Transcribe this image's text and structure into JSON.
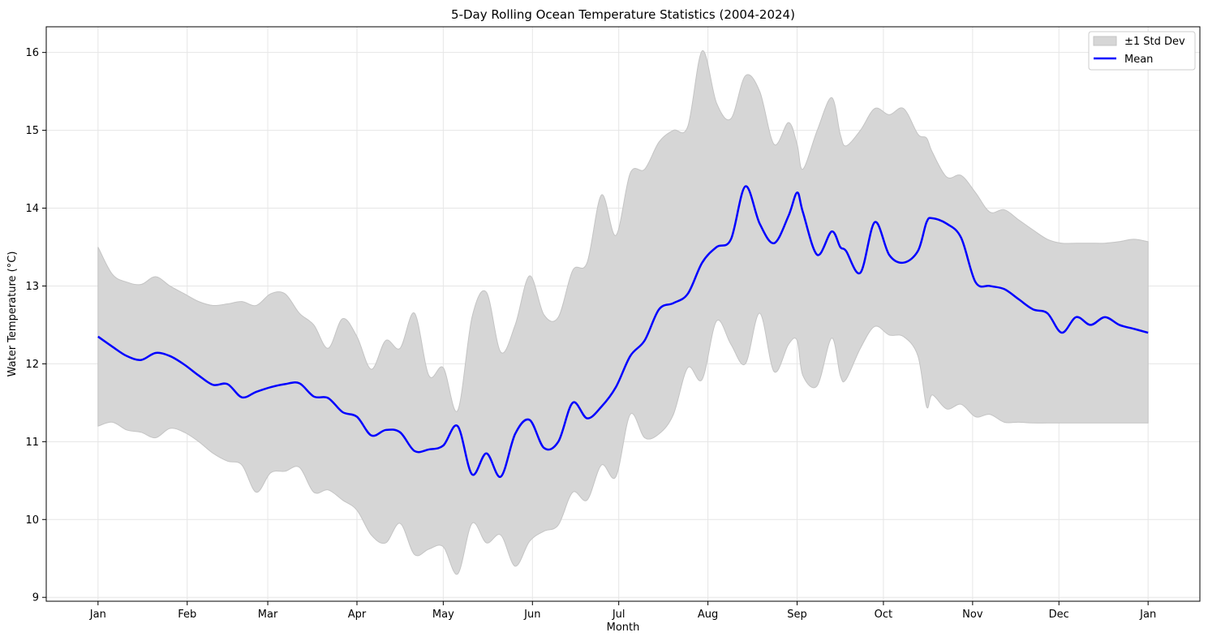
{
  "chart_data": {
    "type": "line",
    "title": "5-Day Rolling Ocean Temperature Statistics (2004-2024)",
    "xlabel": "Month",
    "ylabel": "Water Temperature (°C)",
    "x_ticks": [
      "Jan",
      "Feb",
      "Mar",
      "Apr",
      "May",
      "Jun",
      "Jul",
      "Aug",
      "Sep",
      "Oct",
      "Nov",
      "Dec",
      "Jan"
    ],
    "x_tick_days": [
      1,
      32,
      60,
      91,
      121,
      152,
      182,
      213,
      244,
      274,
      305,
      335,
      366
    ],
    "xlim": [
      -17,
      384
    ],
    "ylim": [
      8.95,
      16.33
    ],
    "y_ticks": [
      9,
      10,
      11,
      12,
      13,
      14,
      15,
      16
    ],
    "grid": true,
    "legend_position": "top-right",
    "colors": {
      "mean": "#0000ff",
      "band": "#d6d6d6",
      "band_edge": "#c4c4c4"
    },
    "series": [
      {
        "name": "Mean",
        "x": [
          1,
          6,
          11,
          16,
          21,
          26,
          31,
          36,
          41,
          46,
          51,
          56,
          61,
          66,
          71,
          76,
          81,
          86,
          91,
          96,
          101,
          106,
          111,
          116,
          121,
          126,
          131,
          136,
          141,
          146,
          151,
          156,
          161,
          166,
          171,
          176,
          181,
          186,
          191,
          196,
          201,
          206,
          211,
          216,
          221,
          226,
          231,
          236,
          241,
          244,
          246,
          251,
          256,
          259,
          261,
          266,
          271,
          276,
          281,
          286,
          289,
          291,
          296,
          301,
          306,
          311,
          316,
          321,
          326,
          331,
          336,
          341,
          346,
          351,
          356,
          361,
          366
        ],
        "values": [
          12.35,
          12.22,
          12.1,
          12.05,
          12.14,
          12.1,
          11.99,
          11.85,
          11.73,
          11.74,
          11.57,
          11.64,
          11.7,
          11.74,
          11.75,
          11.58,
          11.56,
          11.38,
          11.32,
          11.08,
          11.15,
          11.12,
          10.88,
          10.9,
          10.95,
          11.2,
          10.58,
          10.85,
          10.55,
          11.1,
          11.28,
          10.92,
          11.0,
          11.5,
          11.3,
          11.45,
          11.7,
          12.1,
          12.3,
          12.7,
          12.78,
          12.9,
          13.3,
          13.5,
          13.6,
          14.28,
          13.8,
          13.55,
          13.9,
          14.2,
          13.95,
          13.4,
          13.7,
          13.5,
          13.45,
          13.17,
          13.82,
          13.4,
          13.3,
          13.45,
          13.82,
          13.87,
          13.8,
          13.62,
          13.05,
          13.0,
          12.96,
          12.83,
          12.7,
          12.65,
          12.4,
          12.6,
          12.5,
          12.6,
          12.5,
          12.45,
          12.4
        ]
      },
      {
        "name": "±1 Std Dev",
        "x": [
          1,
          6,
          11,
          16,
          21,
          26,
          31,
          36,
          41,
          46,
          51,
          56,
          61,
          66,
          71,
          76,
          81,
          86,
          91,
          96,
          101,
          106,
          111,
          116,
          121,
          126,
          131,
          136,
          141,
          146,
          151,
          156,
          161,
          166,
          171,
          176,
          181,
          186,
          191,
          196,
          201,
          206,
          211,
          216,
          221,
          226,
          231,
          236,
          241,
          244,
          246,
          251,
          256,
          259,
          261,
          266,
          271,
          276,
          281,
          286,
          289,
          291,
          296,
          301,
          306,
          311,
          316,
          321,
          326,
          331,
          336,
          341,
          346,
          351,
          356,
          361,
          366
        ],
        "upper": [
          13.5,
          13.15,
          13.05,
          13.02,
          13.12,
          13.0,
          12.9,
          12.8,
          12.75,
          12.77,
          12.8,
          12.75,
          12.9,
          12.9,
          12.65,
          12.5,
          12.2,
          12.58,
          12.35,
          11.93,
          12.3,
          12.2,
          12.65,
          11.85,
          11.95,
          11.4,
          12.6,
          12.92,
          12.15,
          12.5,
          13.13,
          12.63,
          12.6,
          13.2,
          13.3,
          14.17,
          13.65,
          14.45,
          14.5,
          14.85,
          15.0,
          15.05,
          16.02,
          15.35,
          15.15,
          15.7,
          15.5,
          14.82,
          15.1,
          14.82,
          14.5,
          15.0,
          15.42,
          14.95,
          14.8,
          15.0,
          15.28,
          15.2,
          15.28,
          14.95,
          14.9,
          14.72,
          14.4,
          14.42,
          14.2,
          13.95,
          13.98,
          13.85,
          13.72,
          13.6,
          13.55,
          13.55,
          13.55,
          13.55,
          13.57,
          13.6,
          13.57
        ],
        "lower": [
          11.2,
          11.25,
          11.15,
          11.12,
          11.05,
          11.17,
          11.12,
          11.0,
          10.85,
          10.75,
          10.7,
          10.35,
          10.6,
          10.62,
          10.67,
          10.35,
          10.38,
          10.25,
          10.12,
          9.8,
          9.7,
          9.95,
          9.55,
          9.62,
          9.65,
          9.3,
          9.95,
          9.7,
          9.8,
          9.4,
          9.72,
          9.85,
          9.93,
          10.35,
          10.25,
          10.7,
          10.55,
          11.35,
          11.05,
          11.1,
          11.35,
          11.95,
          11.8,
          12.55,
          12.25,
          12.0,
          12.65,
          11.9,
          12.25,
          12.3,
          11.85,
          11.72,
          12.33,
          11.85,
          11.8,
          12.2,
          12.48,
          12.37,
          12.35,
          12.1,
          11.45,
          11.6,
          11.42,
          11.48,
          11.32,
          11.35,
          11.25,
          11.25,
          11.24,
          11.24,
          11.24,
          11.24,
          11.24,
          11.24,
          11.24,
          11.24,
          11.24
        ]
      }
    ]
  }
}
